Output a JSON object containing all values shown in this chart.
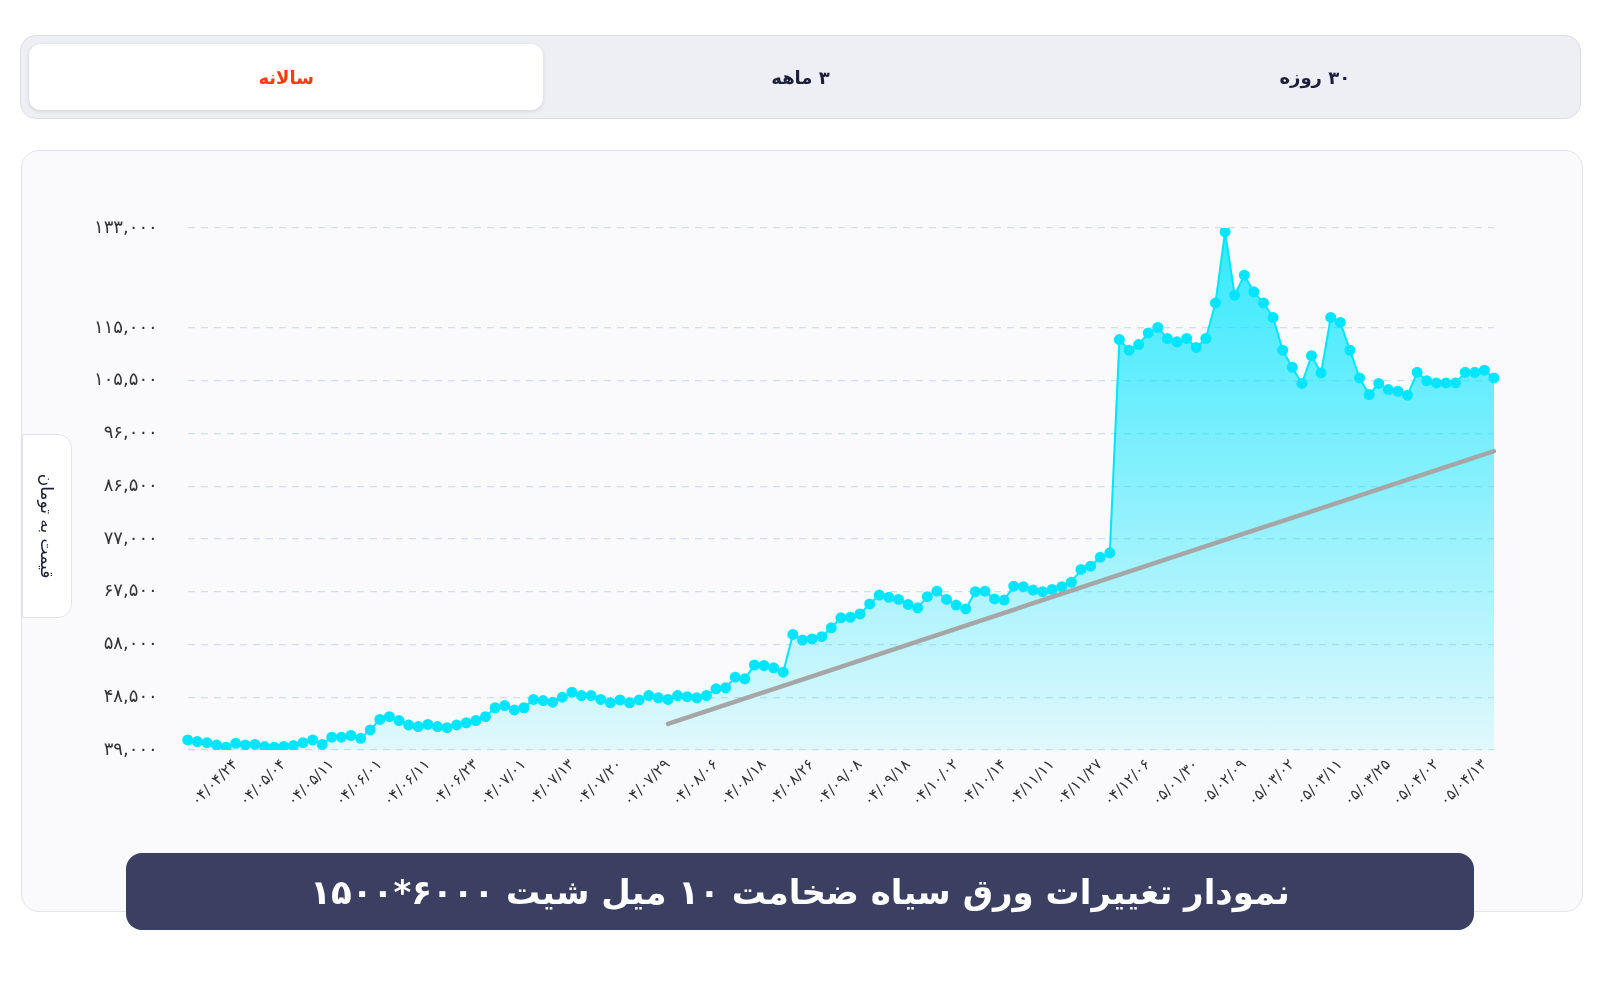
{
  "chart_data": {
    "type": "area",
    "title": "نمودار تغییرات ورق سیاه ضخامت ۱۰ میل شیت ۶۰۰۰*۱۵۰۰",
    "ylabel": "قیمت به تومان",
    "annotations": [
      "۳۰ روزه",
      "۳ ماهه",
      "سالانه"
    ],
    "categories": [
      null,
      null,
      null,
      null,
      null,
      "۰۴/۰۴/۲۴",
      null,
      null,
      null,
      null,
      "۰۴/۰۵/۰۴",
      null,
      null,
      null,
      null,
      "۰۴/۰۵/۱۱",
      null,
      null,
      null,
      null,
      "۰۴/۰۶/۰۱",
      null,
      null,
      null,
      null,
      "۰۴/۰۶/۱۱",
      null,
      null,
      null,
      null,
      "۰۴/۰۶/۲۳",
      null,
      null,
      null,
      null,
      "۰۴/۰۷/۰۱",
      null,
      null,
      null,
      null,
      "۰۴/۰۷/۱۳",
      null,
      null,
      null,
      null,
      "۰۴/۰۷/۲۰",
      null,
      null,
      null,
      null,
      "۰۴/۰۷/۲۹",
      null,
      null,
      null,
      null,
      "۰۴/۰۸/۰۶",
      null,
      null,
      null,
      null,
      "۰۴/۰۸/۱۸",
      null,
      null,
      null,
      null,
      "۰۴/۰۸/۲۶",
      null,
      null,
      null,
      null,
      "۰۴/۰۹/۰۸",
      null,
      null,
      null,
      null,
      "۰۴/۰۹/۱۸",
      null,
      null,
      null,
      null,
      "۰۴/۱۰/۰۲",
      null,
      null,
      null,
      null,
      "۰۴/۱۰/۱۴",
      null,
      null,
      null,
      null,
      "۰۴/۱۱/۱۱",
      null,
      null,
      null,
      null,
      "۰۴/۱۱/۲۷",
      null,
      null,
      null,
      null,
      "۰۴/۱۲/۰۶",
      null,
      null,
      null,
      null,
      "۰۵/۰۱/۳۰",
      null,
      null,
      null,
      null,
      "۰۵/۰۲/۰۹",
      null,
      null,
      null,
      null,
      "۰۵/۰۳/۰۲",
      null,
      null,
      null,
      null,
      "۰۵/۰۳/۱۱",
      null,
      null,
      null,
      null,
      "۰۵/۰۳/۲۵",
      null,
      null,
      null,
      null,
      "۰۵/۰۴/۰۲",
      null,
      null,
      null,
      null,
      "۰۵/۰۴/۱۳",
      null
    ],
    "series": [
      {
        "color": "#00e5ff",
        "values": [
          40800,
          40500,
          40300,
          39900,
          39500,
          40200,
          39900,
          40000,
          39600,
          39500,
          39600,
          39800,
          40300,
          40800,
          40000,
          41300,
          41300,
          41600,
          41100,
          42600,
          44500,
          45000,
          44300,
          43500,
          43200,
          43600,
          43200,
          43000,
          43500,
          43900,
          44300,
          45000,
          46600,
          47000,
          46200,
          46600,
          48100,
          47900,
          47600,
          48500,
          49400,
          48800,
          48800,
          48100,
          47500,
          48000,
          47500,
          48000,
          48800,
          48400,
          48100,
          48800,
          48600,
          48400,
          48800,
          50000,
          50200,
          52100,
          51800,
          54300,
          54200,
          53800,
          53000,
          59800,
          58800,
          59000,
          59400,
          61000,
          62800,
          62900,
          63500,
          65300,
          66900,
          66500,
          66100,
          65200,
          64600,
          66600,
          67600,
          66100,
          65100,
          64400,
          67500,
          67600,
          66200,
          66000,
          68500,
          68400,
          67800,
          67500,
          67900,
          68400,
          69200,
          71500,
          72100,
          73700,
          74500,
          112900,
          111000,
          112000,
          114100,
          115100,
          113100,
          112500,
          113100,
          111500,
          113100,
          119500,
          132300,
          120900,
          124500,
          121500,
          119500,
          116900,
          111000,
          107900,
          105000,
          110000,
          106900,
          116900,
          116000,
          111000,
          106000,
          103000,
          105000,
          103900,
          103600,
          102900,
          107000,
          105500,
          105100,
          105100,
          105100,
          107000,
          107000,
          107400,
          106000
        ]
      },
      {
        "type": "line",
        "color": "#a6a6a6",
        "marker": "none",
        "values": [
          null,
          null,
          null,
          null,
          null,
          null,
          null,
          null,
          null,
          null,
          null,
          null,
          null,
          null,
          null,
          null,
          null,
          null,
          null,
          null,
          null,
          null,
          null,
          null,
          null,
          null,
          null,
          null,
          null,
          null,
          null,
          null,
          null,
          null,
          null,
          null,
          null,
          null,
          null,
          null,
          null,
          null,
          null,
          null,
          null,
          null,
          null,
          null,
          null,
          null,
          43700,
          null,
          null,
          null,
          null,
          null,
          null,
          null,
          null,
          null,
          null,
          null,
          null,
          null,
          null,
          null,
          null,
          null,
          null,
          null,
          null,
          null,
          null,
          null,
          null,
          null,
          null,
          null,
          null,
          null,
          null,
          null,
          null,
          null,
          null,
          null,
          null,
          null,
          null,
          null,
          null,
          null,
          null,
          null,
          null,
          null,
          null,
          null,
          null,
          null,
          null,
          null,
          null,
          null,
          null,
          null,
          null,
          null,
          null,
          null,
          null,
          null,
          null,
          null,
          null,
          null,
          null,
          null,
          null,
          null,
          null,
          null,
          null,
          null,
          null,
          null,
          null,
          null,
          null,
          null,
          null,
          null,
          null,
          null,
          null,
          null,
          92800
        ]
      }
    ],
    "ylim": [
      39000,
      133000
    ],
    "yticks": [
      {
        "value": 39000,
        "label": "۳۹,۰۰۰"
      },
      {
        "value": 48500,
        "label": "۴۸,۵۰۰"
      },
      {
        "value": 58000,
        "label": "۵۸,۰۰۰"
      },
      {
        "value": 67500,
        "label": "۶۷,۵۰۰"
      },
      {
        "value": 77000,
        "label": "۷۷,۰۰۰"
      },
      {
        "value": 86500,
        "label": "۸۶,۵۰۰"
      },
      {
        "value": 96000,
        "label": "۹۶,۰۰۰"
      },
      {
        "value": 105500,
        "label": "۱۰۵,۵۰۰"
      },
      {
        "value": 115000,
        "label": "۱۱۵,۰۰۰"
      },
      {
        "value": 133000,
        "label": "۱۳۳,۰۰۰"
      }
    ],
    "grid": "y",
    "marker": "circle",
    "line_style": "solid"
  }
}
